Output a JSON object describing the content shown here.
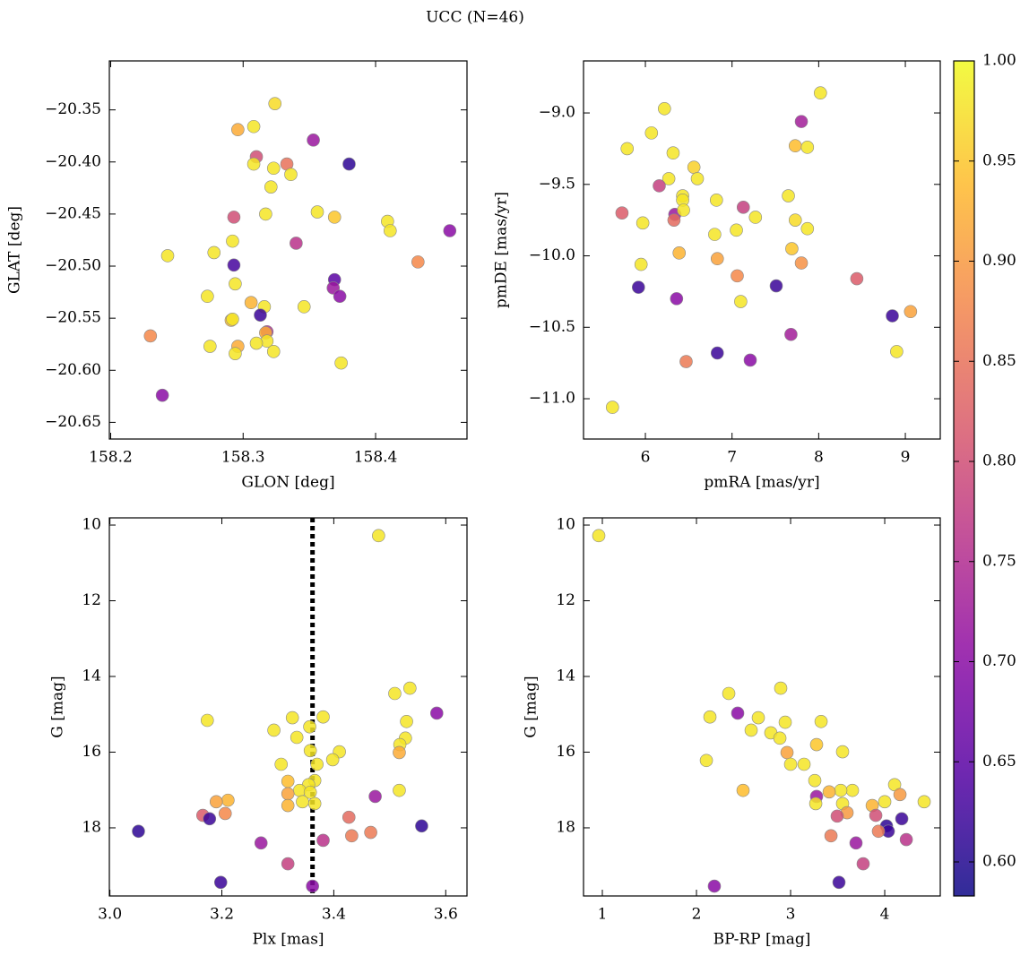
{
  "title": "UCC (N=46)",
  "colorbar": {
    "cmap": "plasma",
    "clim": [
      0.583,
      1.0
    ],
    "ticks": [
      {
        "value": 0.6,
        "label": "0.60"
      },
      0.65,
      {
        "value": 0.7,
        "label": "0.70"
      },
      0.75,
      {
        "value": 0.8,
        "label": "0.80"
      },
      0.85,
      {
        "value": 0.9,
        "label": "0.90"
      },
      0.95,
      {
        "value": 1,
        "label": "1.00"
      }
    ]
  },
  "chart_data": [
    {
      "type": "scatter",
      "xlabel": "GLON [deg]",
      "ylabel": "GLAT [deg]",
      "xlim": [
        158.199,
        158.469
      ],
      "ylim": [
        -20.666,
        -20.303
      ],
      "xticks": [
        158.2,
        158.3,
        158.4
      ],
      "yticks": [
        {
          "value": -20.35,
          "label": "−20.35"
        },
        {
          "value": -20.4,
          "label": "−20.40"
        },
        {
          "value": -20.45,
          "label": "−20.45"
        },
        {
          "value": -20.5,
          "label": "−20.50"
        },
        {
          "value": -20.55,
          "label": "−20.55"
        },
        {
          "value": -20.6,
          "label": "−20.60"
        },
        {
          "value": -20.65,
          "label": "−20.65"
        }
      ],
      "x": [
        158.324,
        158.296,
        158.308,
        158.31,
        158.353,
        158.308,
        158.323,
        158.333,
        158.336,
        158.38,
        158.321,
        158.317,
        158.356,
        158.293,
        158.369,
        158.409,
        158.411,
        158.456,
        158.292,
        158.34,
        158.243,
        158.278,
        158.432,
        158.293,
        158.369,
        158.368,
        158.294,
        158.273,
        158.373,
        158.346,
        158.316,
        158.306,
        158.313,
        158.291,
        158.292,
        158.23,
        158.318,
        158.317,
        158.318,
        158.31,
        158.275,
        158.296,
        158.294,
        158.323,
        158.374,
        158.239
      ],
      "y": [
        -20.344,
        -20.369,
        -20.366,
        -20.395,
        -20.379,
        -20.402,
        -20.406,
        -20.402,
        -20.412,
        -20.402,
        -20.424,
        -20.45,
        -20.448,
        -20.453,
        -20.453,
        -20.457,
        -20.466,
        -20.466,
        -20.476,
        -20.478,
        -20.49,
        -20.487,
        -20.496,
        -20.499,
        -20.513,
        -20.521,
        -20.517,
        -20.529,
        -20.529,
        -20.539,
        -20.539,
        -20.535,
        -20.547,
        -20.552,
        -20.551,
        -20.567,
        -20.563,
        -20.564,
        -20.572,
        -20.574,
        -20.577,
        -20.577,
        -20.584,
        -20.582,
        -20.593,
        -20.624
      ],
      "c": [
        0.97,
        0.92,
        0.98,
        0.8,
        0.72,
        0.98,
        0.98,
        0.85,
        0.98,
        0.61,
        0.98,
        0.98,
        0.98,
        0.8,
        0.95,
        0.98,
        0.98,
        0.7,
        0.98,
        0.76,
        0.98,
        0.98,
        0.88,
        0.63,
        0.65,
        0.72,
        0.98,
        0.98,
        0.7,
        0.98,
        0.98,
        0.93,
        0.62,
        0.94,
        0.98,
        0.88,
        0.75,
        0.92,
        0.98,
        0.98,
        0.98,
        0.92,
        0.98,
        0.98,
        0.98,
        0.7
      ]
    },
    {
      "type": "scatter",
      "xlabel": "pmRA [mas/yr]",
      "ylabel": "pmDE [mas/yr]",
      "xlim": [
        5.286,
        9.403
      ],
      "ylim": [
        -11.282,
        -8.636
      ],
      "xticks": [
        6,
        7,
        8,
        9
      ],
      "yticks": [
        {
          "value": -9,
          "label": "−9.0"
        },
        {
          "value": -9.5,
          "label": "−9.5"
        },
        {
          "value": -10,
          "label": "−10.0"
        },
        {
          "value": -10.5,
          "label": "−10.5"
        },
        {
          "value": -11,
          "label": "−11.0"
        }
      ],
      "x": [
        8.02,
        7.8,
        6.22,
        6.07,
        5.79,
        6.32,
        7.73,
        7.87,
        6.27,
        6.56,
        6.6,
        6.16,
        6.43,
        7.65,
        7.13,
        5.73,
        6.34,
        6.43,
        6.82,
        6.44,
        6.33,
        5.97,
        7.27,
        7.73,
        7.87,
        7.05,
        6.8,
        7.69,
        6.39,
        6.83,
        5.95,
        7.8,
        7.06,
        8.44,
        5.92,
        7.51,
        7.1,
        6.36,
        9.06,
        8.85,
        7.68,
        8.9,
        6.83,
        7.21,
        6.47,
        5.62
      ],
      "y": [
        -8.86,
        -9.06,
        -8.97,
        -9.14,
        -9.25,
        -9.28,
        -9.23,
        -9.24,
        -9.46,
        -9.38,
        -9.46,
        -9.51,
        -9.58,
        -9.58,
        -9.66,
        -9.7,
        -9.71,
        -9.61,
        -9.61,
        -9.68,
        -9.75,
        -9.77,
        -9.73,
        -9.75,
        -9.81,
        -9.82,
        -9.85,
        -9.95,
        -9.98,
        -10.02,
        -10.06,
        -10.05,
        -10.14,
        -10.16,
        -10.22,
        -10.21,
        -10.32,
        -10.3,
        -10.39,
        -10.42,
        -10.55,
        -10.67,
        -10.68,
        -10.73,
        -10.74,
        -11.06
      ],
      "c": [
        0.98,
        0.73,
        0.98,
        0.98,
        0.98,
        0.98,
        0.94,
        0.98,
        0.98,
        0.96,
        0.98,
        0.78,
        0.98,
        0.98,
        0.78,
        0.82,
        0.72,
        0.98,
        0.98,
        0.98,
        0.84,
        0.98,
        0.98,
        0.97,
        0.98,
        0.98,
        0.98,
        0.95,
        0.93,
        0.91,
        0.98,
        0.89,
        0.88,
        0.82,
        0.62,
        0.62,
        0.98,
        0.7,
        0.91,
        0.62,
        0.73,
        0.98,
        0.62,
        0.7,
        0.86,
        0.98
      ]
    },
    {
      "type": "scatter",
      "xlabel": "Plx [mas]",
      "ylabel": "G [mag]",
      "vline": 3.362,
      "xlim": [
        2.999,
        3.638
      ],
      "ylim": [
        19.8,
        9.81
      ],
      "xticks": [
        {
          "value": 3,
          "label": "3.0"
        },
        3.2,
        3.4,
        3.6
      ],
      "yticks": [
        10,
        12,
        14,
        16,
        18
      ],
      "x": [
        3.48,
        3.536,
        3.509,
        3.584,
        3.381,
        3.326,
        3.174,
        3.53,
        3.357,
        3.293,
        3.528,
        3.334,
        3.518,
        3.358,
        3.41,
        3.517,
        3.398,
        3.37,
        3.306,
        3.318,
        3.366,
        3.355,
        3.339,
        3.517,
        3.318,
        3.474,
        3.211,
        3.19,
        3.344,
        3.318,
        3.366,
        3.206,
        3.166,
        3.178,
        3.427,
        3.051,
        3.557,
        3.466,
        3.432,
        3.381,
        3.27,
        3.318,
        3.198,
        3.362,
        3.358
      ],
      "y": [
        10.28,
        14.31,
        14.45,
        14.97,
        15.07,
        15.09,
        15.16,
        15.19,
        15.33,
        15.42,
        15.63,
        15.61,
        15.8,
        15.96,
        15.99,
        16.01,
        16.2,
        16.32,
        16.32,
        16.77,
        16.75,
        16.86,
        17.01,
        17.01,
        17.1,
        17.17,
        17.27,
        17.31,
        17.31,
        17.41,
        17.36,
        17.62,
        17.67,
        17.76,
        17.72,
        18.09,
        17.95,
        18.12,
        18.21,
        18.33,
        18.4,
        18.95,
        19.44,
        19.54,
        17.06
      ],
      "c": [
        0.98,
        0.98,
        0.98,
        0.7,
        0.98,
        0.98,
        0.98,
        0.98,
        0.98,
        0.98,
        0.98,
        0.98,
        0.98,
        0.98,
        0.98,
        0.92,
        0.98,
        0.98,
        0.98,
        0.94,
        0.98,
        0.98,
        0.98,
        0.98,
        0.91,
        0.72,
        0.93,
        0.91,
        0.98,
        0.93,
        0.98,
        0.88,
        0.82,
        0.62,
        0.84,
        0.61,
        0.61,
        0.86,
        0.86,
        0.76,
        0.72,
        0.78,
        0.62,
        0.7,
        0.98
      ]
    },
    {
      "type": "scatter",
      "xlabel": "BP-RP [mag]",
      "ylabel": "G [mag]",
      "xlim": [
        0.8,
        4.59
      ],
      "ylim": [
        19.8,
        9.81
      ],
      "xticks": [
        1,
        2,
        3,
        4
      ],
      "yticks": [
        10,
        12,
        14,
        16,
        18
      ],
      "x": [
        0.962,
        2.343,
        2.895,
        2.438,
        2.143,
        2.657,
        3.324,
        2.943,
        2.581,
        2.79,
        2.886,
        3.276,
        3.552,
        2.962,
        2.105,
        3.0,
        3.143,
        3.257,
        4.105,
        2.495,
        3.657,
        3.533,
        3.41,
        3.276,
        4.162,
        4.0,
        4.419,
        3.552,
        3.267,
        3.867,
        3.6,
        3.495,
        3.905,
        4.181,
        4.019,
        4.038,
        3.933,
        3.429,
        4.229,
        3.695,
        3.771,
        2.19,
        3.514
      ],
      "y": [
        10.28,
        14.45,
        14.31,
        14.97,
        15.07,
        15.09,
        15.19,
        15.21,
        15.42,
        15.49,
        15.63,
        15.8,
        15.99,
        16.01,
        16.22,
        16.32,
        16.32,
        16.75,
        16.86,
        17.01,
        17.01,
        17.01,
        17.05,
        17.17,
        17.12,
        17.31,
        17.31,
        17.36,
        17.36,
        17.41,
        17.6,
        17.69,
        17.67,
        17.76,
        17.95,
        18.09,
        18.09,
        18.21,
        18.31,
        18.4,
        18.95,
        19.54,
        19.44
      ],
      "c": [
        0.98,
        0.98,
        0.98,
        0.7,
        0.98,
        0.98,
        0.98,
        0.98,
        0.98,
        0.98,
        0.98,
        0.95,
        0.98,
        0.91,
        0.98,
        0.98,
        0.98,
        0.98,
        0.98,
        0.94,
        0.98,
        0.98,
        0.93,
        0.72,
        0.9,
        0.98,
        0.98,
        0.98,
        0.98,
        0.93,
        0.9,
        0.8,
        0.8,
        0.62,
        0.61,
        0.62,
        0.86,
        0.86,
        0.76,
        0.72,
        0.78,
        0.7,
        0.62
      ]
    }
  ]
}
